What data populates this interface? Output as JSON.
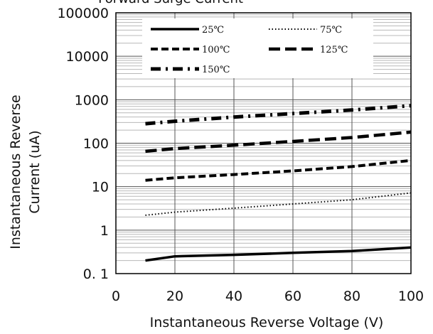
{
  "chart_data": {
    "type": "line",
    "title": "Forward Surge Current",
    "xlabel": "Instantaneous Reverse Voltage (V)",
    "ylabel_line1": "Instantaneous Reverse",
    "ylabel_line2": "Current (uA)",
    "xlim": [
      0,
      100
    ],
    "ylim": [
      0.1,
      100000
    ],
    "y_scale": "log",
    "grid": true,
    "legend_placement": "top",
    "x_tick_labels": [
      "0",
      "20",
      "40",
      "60",
      "80",
      "100"
    ],
    "x_ticks": [
      0,
      20,
      40,
      60,
      80,
      100
    ],
    "y_tick_labels": [
      "0. 1",
      "1",
      "10",
      "100",
      "1000",
      "10000",
      "100000"
    ],
    "y_ticks": [
      0.1,
      1,
      10,
      100,
      1000,
      10000,
      100000
    ],
    "series": [
      {
        "name": "25℃",
        "style": "solid",
        "x": [
          10,
          20,
          40,
          60,
          80,
          100
        ],
        "values": [
          0.2,
          0.25,
          0.27,
          0.3,
          0.33,
          0.4
        ]
      },
      {
        "name": "75℃",
        "style": "dotted",
        "x": [
          10,
          20,
          40,
          60,
          80,
          100
        ],
        "values": [
          2.2,
          2.6,
          3.2,
          4.0,
          5.0,
          7.2
        ]
      },
      {
        "name": "100℃",
        "style": "short-dash",
        "x": [
          10,
          20,
          40,
          60,
          80,
          100
        ],
        "values": [
          14,
          16,
          19,
          23,
          29,
          40
        ]
      },
      {
        "name": "125℃",
        "style": "long-dash",
        "x": [
          10,
          20,
          40,
          60,
          80,
          100
        ],
        "values": [
          65,
          75,
          90,
          110,
          135,
          180
        ]
      },
      {
        "name": "150℃",
        "style": "dash-dot",
        "x": [
          10,
          20,
          40,
          60,
          80,
          100
        ],
        "values": [
          280,
          320,
          400,
          480,
          580,
          730
        ]
      }
    ]
  }
}
